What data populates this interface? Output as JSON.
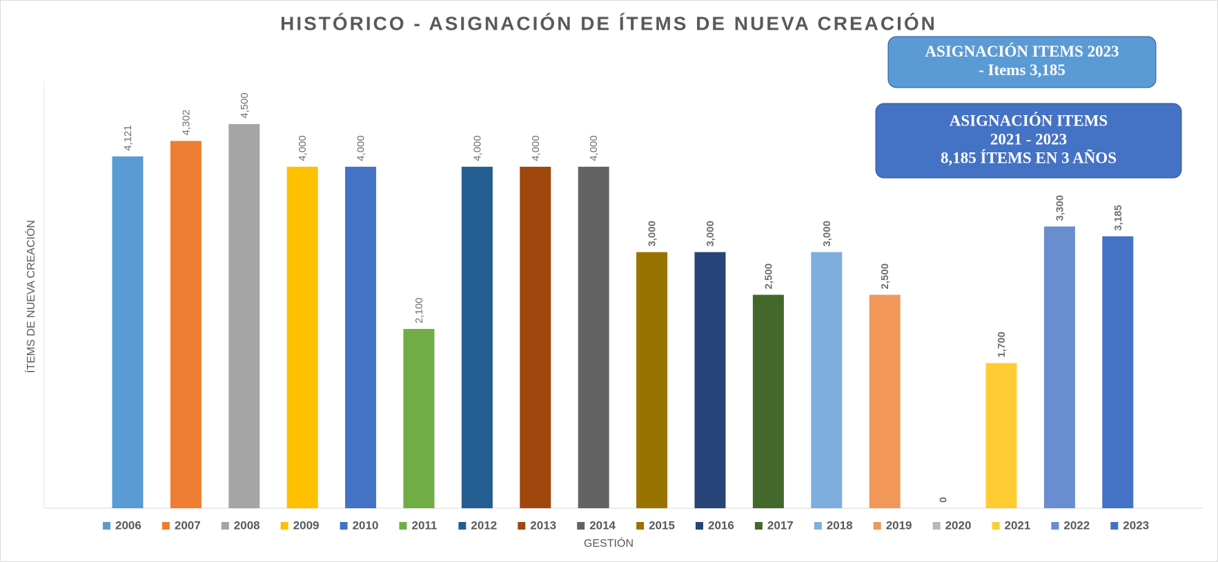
{
  "chart_data": {
    "type": "bar",
    "title": "HISTÓRICO - ASIGNACIÓN DE ÍTEMS DE NUEVA CREACIÓN",
    "x_label": "GESTIÓN",
    "y_label": "ÍTEMS DE NUEVA CREACIÓN",
    "categories": [
      "2006",
      "2007",
      "2008",
      "2009",
      "2010",
      "2011",
      "2012",
      "2013",
      "2014",
      "2015",
      "2016",
      "2017",
      "2018",
      "2019",
      "2020",
      "2021",
      "2022",
      "2023"
    ],
    "values": [
      4121,
      4302,
      4500,
      4000,
      4000,
      2100,
      4000,
      4000,
      4000,
      3000,
      3000,
      2500,
      3000,
      2500,
      0,
      1700,
      3300,
      3185
    ],
    "value_labels": [
      "4,121",
      "4,302",
      "4,500",
      "4,000",
      "4,000",
      "2,100",
      "4,000",
      "4,000",
      "4,000",
      "3,000",
      "3,000",
      "2,500",
      "3,000",
      "2,500",
      "0",
      "1,700",
      "3,300",
      "3,185"
    ],
    "colors": [
      "#5b9bd5",
      "#ed7d31",
      "#a5a5a5",
      "#ffc000",
      "#4472c4",
      "#70ad47",
      "#255e91",
      "#9e480e",
      "#636363",
      "#997300",
      "#264478",
      "#43682b",
      "#7cafdd",
      "#f1975a",
      "#b7b7b7",
      "#ffcd33",
      "#698ed0",
      "#4472c4"
    ],
    "ylim": [
      0,
      5000
    ],
    "legend": "bottom",
    "annotations": [
      {
        "lines": [
          "ASIGNACIÓN ITEMS 2023",
          "- Items 3,185"
        ],
        "color": "#5b9bd5"
      },
      {
        "lines": [
          "ASIGNACIÓN ITEMS",
          "2021 - 2023",
          "8,185 ÍTEMS EN 3 AÑOS"
        ],
        "color": "#4472c4"
      }
    ]
  }
}
